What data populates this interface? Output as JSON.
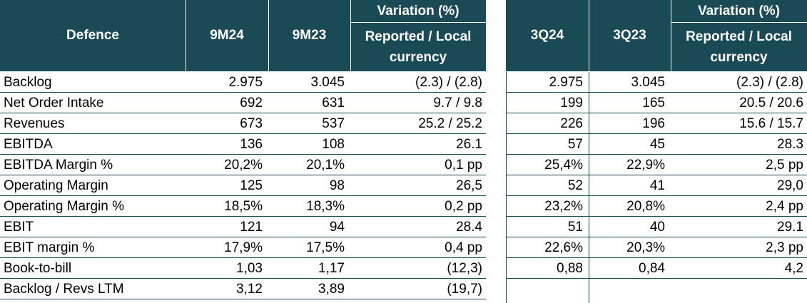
{
  "left": {
    "title": "Defence",
    "col1": "9M24",
    "col2": "9M23",
    "variation_title": "Variation (%)",
    "variation_sub": "Reported / Local currency",
    "rows": [
      {
        "label": "Backlog",
        "v1": "2.975",
        "v2": "3.045",
        "var": "(2.3) / (2.8)"
      },
      {
        "label": "Net Order Intake",
        "v1": "692",
        "v2": "631",
        "var": "9.7 / 9.8"
      },
      {
        "label": "Revenues",
        "v1": "673",
        "v2": "537",
        "var": "25.2 / 25.2"
      },
      {
        "label": "EBITDA",
        "v1": "136",
        "v2": "108",
        "var": "26.1"
      },
      {
        "label": "EBITDA Margin %",
        "v1": "20,2%",
        "v2": "20,1%",
        "var": "0,1 pp"
      },
      {
        "label": "Operating Margin",
        "v1": "125",
        "v2": "98",
        "var": "26,5"
      },
      {
        "label": "Operating Margin %",
        "v1": "18,5%",
        "v2": "18,3%",
        "var": "0,2 pp"
      },
      {
        "label": "EBIT",
        "v1": "121",
        "v2": "94",
        "var": "28.4"
      },
      {
        "label": "EBIT margin %",
        "v1": "17,9%",
        "v2": "17,5%",
        "var": "0,4 pp"
      },
      {
        "label": "Book-to-bill",
        "v1": "1,03",
        "v2": "1,17",
        "var": "(12,3)"
      },
      {
        "label": "Backlog / Revs LTM",
        "v1": "3,12",
        "v2": "3,89",
        "var": "(19,7)"
      }
    ]
  },
  "right": {
    "col1": "3Q24",
    "col2": "3Q23",
    "variation_title": "Variation (%)",
    "variation_sub": "Reported / Local currency",
    "rows": [
      {
        "v1": "2.975",
        "v2": "3.045",
        "var": "(2.3) / (2.8)"
      },
      {
        "v1": "199",
        "v2": "165",
        "var": "20.5 / 20.6"
      },
      {
        "v1": "226",
        "v2": "196",
        "var": "15.6 / 15.7"
      },
      {
        "v1": "57",
        "v2": "45",
        "var": "28.3"
      },
      {
        "v1": "25,4%",
        "v2": "22,9%",
        "var": "2,5 pp"
      },
      {
        "v1": "52",
        "v2": "41",
        "var": "29,0"
      },
      {
        "v1": "23,2%",
        "v2": "20,8%",
        "var": "2,4 pp"
      },
      {
        "v1": "51",
        "v2": "40",
        "var": "29.1"
      },
      {
        "v1": "22,6%",
        "v2": "20,3%",
        "var": "2,3 pp"
      },
      {
        "v1": "0,88",
        "v2": "0,84",
        "var": "4,2"
      }
    ]
  },
  "colors": {
    "header_bg": "#1b4a57",
    "header_text": "#ffffff",
    "rule": "#1b4a57"
  }
}
